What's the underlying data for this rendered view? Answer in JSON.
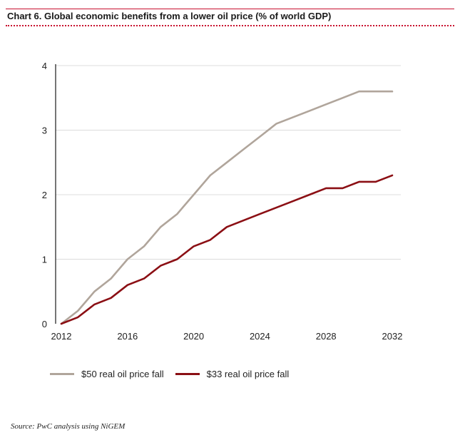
{
  "title": "Chart 6. Global economic benefits from a lower oil price (% of world GDP)",
  "colors": {
    "accent": "#c8102e",
    "series_50": "#b0a59b",
    "series_33": "#8b0f14",
    "grid": "#dcdcdc"
  },
  "chart_data": {
    "type": "line",
    "title": "Chart 6. Global economic benefits from a lower oil price (% of world GDP)",
    "xlabel": "",
    "ylabel": "",
    "xlim": [
      2012,
      2032
    ],
    "ylim": [
      0,
      4
    ],
    "x_ticks": [
      "2012",
      "2016",
      "2020",
      "2024",
      "2028",
      "2032"
    ],
    "y_ticks": [
      "0",
      "1",
      "2",
      "3",
      "4"
    ],
    "grid": true,
    "legend_position": "bottom",
    "x": [
      2012,
      2013,
      2014,
      2015,
      2016,
      2017,
      2018,
      2019,
      2020,
      2021,
      2022,
      2023,
      2024,
      2025,
      2026,
      2027,
      2028,
      2029,
      2030,
      2031,
      2032
    ],
    "series": [
      {
        "name": "$50 real oil price fall",
        "values": [
          0,
          0.2,
          0.5,
          0.7,
          1.0,
          1.2,
          1.5,
          1.7,
          2.0,
          2.3,
          2.5,
          2.7,
          2.9,
          3.1,
          3.2,
          3.3,
          3.4,
          3.5,
          3.6,
          3.6,
          3.6
        ]
      },
      {
        "name": "$33 real oil price fall",
        "values": [
          0,
          0.1,
          0.3,
          0.4,
          0.6,
          0.7,
          0.9,
          1.0,
          1.2,
          1.3,
          1.5,
          1.6,
          1.7,
          1.8,
          1.9,
          2.0,
          2.1,
          2.1,
          2.2,
          2.2,
          2.3
        ]
      }
    ]
  },
  "legend": {
    "items": [
      "$50 real oil price fall",
      "$33 real oil price fall"
    ]
  },
  "source": "Source: PwC analysis using NiGEM"
}
